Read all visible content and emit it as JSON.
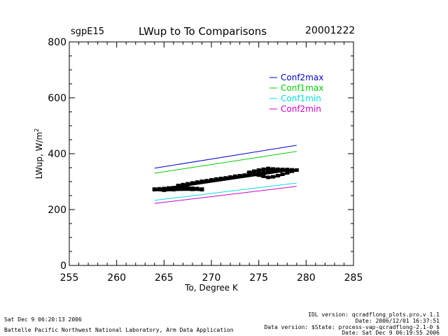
{
  "header": {
    "site": "sgpE15",
    "title": "LWup to To Comparisons",
    "date": "20001222"
  },
  "footer": {
    "left_line1": "Sat Dec  9 06:20:13 2006",
    "left_line2": "Battelle Pacific Northwest National Laboratory, Arm Data Application",
    "right_line1": "IDL version: qcradflong_plots.pro,v 1.1",
    "right_line2": "Date: 2006/12/01 16:37:51",
    "right_line3": "Data version: $State: process-vap-qcradflong-2.1-0 $",
    "right_line4": "Date: Sat Dec  9 06:19:55 2006"
  },
  "chart_data": {
    "type": "line",
    "title": "LWup to To Comparisons",
    "xlabel": "To, Degree K",
    "ylabel": "LWup, W/m",
    "ylabel_sup": "2",
    "xlim": [
      255,
      285
    ],
    "ylim": [
      0,
      800
    ],
    "x_ticks": [
      255,
      260,
      265,
      270,
      275,
      280,
      285
    ],
    "y_ticks": [
      0,
      200,
      400,
      600,
      800
    ],
    "grid": false,
    "legend_position": "top-right",
    "colors": {
      "Conf2max": "#0000cc",
      "Conf1max": "#00cc00",
      "Conf1min": "#00dddd",
      "Conf2min": "#cc00cc",
      "observed": "#000000"
    },
    "series": [
      {
        "name": "Conf2max",
        "color": "#0000cc",
        "x": [
          264,
          279
        ],
        "y": [
          348,
          430
        ]
      },
      {
        "name": "Conf1max",
        "color": "#00cc00",
        "x": [
          264,
          279
        ],
        "y": [
          330,
          408
        ]
      },
      {
        "name": "Conf1min",
        "color": "#00dddd",
        "x": [
          264,
          279
        ],
        "y": [
          233,
          295
        ]
      },
      {
        "name": "Conf2min",
        "color": "#cc00cc",
        "x": [
          264,
          279
        ],
        "y": [
          222,
          283
        ]
      }
    ],
    "scatter": {
      "color": "#000000",
      "x": [
        264.0,
        264.5,
        265.0,
        265.5,
        266.0,
        266.5,
        267.0,
        267.5,
        268.0,
        268.5,
        269.0,
        266.5,
        267.0,
        267.5,
        268.0,
        268.5,
        269.0,
        269.5,
        270.0,
        270.5,
        271.0,
        271.5,
        272.0,
        272.5,
        273.0,
        273.5,
        274.0,
        274.5,
        275.0,
        275.5,
        276.0,
        276.5,
        277.0,
        277.5,
        278.0,
        278.5,
        279.0,
        278.5,
        278.0,
        277.5,
        277.0,
        276.5,
        276.0,
        275.5,
        275.0,
        274.5,
        274.0,
        274.5,
        275.0,
        275.5,
        276.0,
        276.5,
        277.0,
        277.5,
        278.0,
        264.0,
        265.0,
        266.0,
        268.0,
        269.0
      ],
      "y": [
        272,
        273,
        274,
        276,
        277,
        279,
        278,
        276,
        275,
        274,
        272,
        285,
        288,
        291,
        294,
        297,
        300,
        302,
        305,
        308,
        310,
        312,
        315,
        318,
        320,
        322,
        325,
        328,
        330,
        333,
        336,
        338,
        340,
        342,
        342,
        341,
        340,
        336,
        330,
        325,
        320,
        316,
        314,
        318,
        322,
        326,
        332,
        336,
        340,
        343,
        346,
        344,
        343,
        342,
        340,
        270,
        268,
        270,
        271,
        270
      ]
    }
  }
}
